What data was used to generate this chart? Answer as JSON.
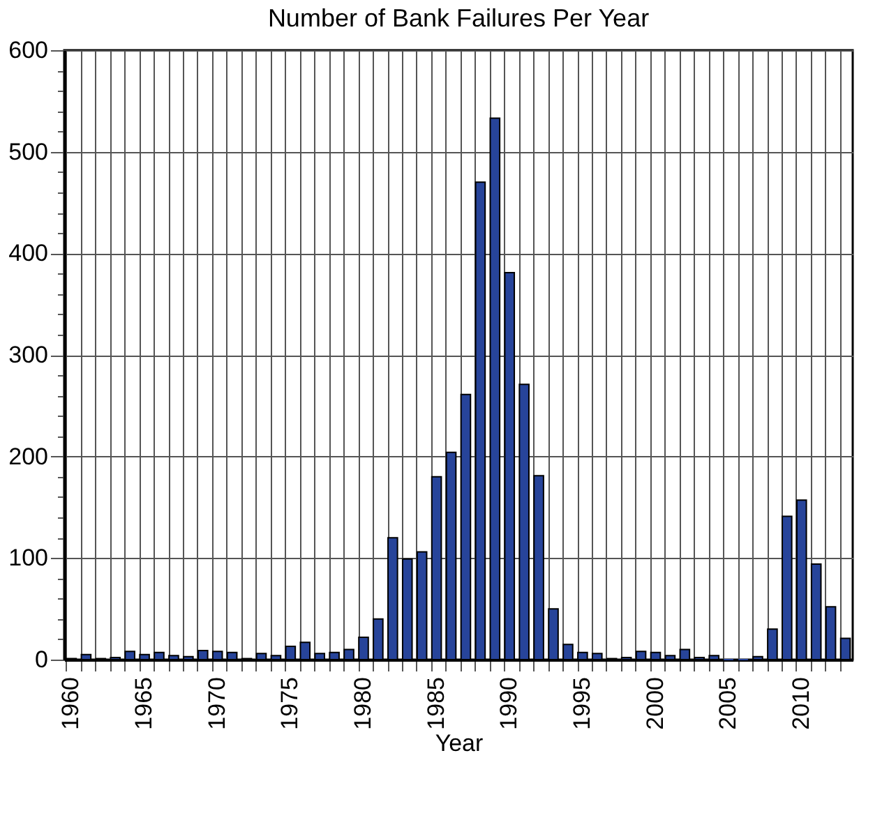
{
  "chart_data": {
    "type": "bar",
    "title": "Number of Bank Failures Per Year",
    "xlabel": "Year",
    "categories": [
      "1960",
      null,
      null,
      null,
      null,
      "1965",
      null,
      null,
      null,
      null,
      "1970",
      null,
      null,
      null,
      null,
      "1975",
      null,
      null,
      null,
      null,
      "1980",
      null,
      null,
      null,
      null,
      "1985",
      null,
      null,
      null,
      null,
      "1990",
      null,
      null,
      null,
      null,
      "1995",
      null,
      null,
      null,
      null,
      "2000",
      null,
      null,
      null,
      null,
      "2005",
      null,
      null,
      null,
      null,
      "2010",
      null,
      null,
      null
    ],
    "values": [
      1,
      5,
      1,
      2,
      8,
      5,
      7,
      4,
      3,
      9,
      8,
      7,
      1,
      6,
      4,
      13,
      17,
      6,
      7,
      10,
      22,
      40,
      120,
      99,
      106,
      180,
      204,
      261,
      470,
      533,
      381,
      271,
      181,
      50,
      15,
      7,
      6,
      1,
      2,
      8,
      7,
      4,
      10,
      2,
      4,
      0,
      0,
      3,
      30,
      141,
      157,
      94,
      52,
      21
    ],
    "color": "#27449a",
    "ylim": [
      0,
      600
    ],
    "yticks": [
      0,
      {
        "value": 20,
        "label": null
      },
      {
        "value": 40,
        "label": null
      },
      {
        "value": 60,
        "label": null
      },
      {
        "value": 80,
        "label": null
      },
      100,
      {
        "value": 120,
        "label": null
      },
      {
        "value": 140,
        "label": null
      },
      {
        "value": 160,
        "label": null
      },
      {
        "value": 180,
        "label": null
      },
      200,
      {
        "value": 220,
        "label": null
      },
      {
        "value": 240,
        "label": null
      },
      {
        "value": 260,
        "label": null
      },
      {
        "value": 280,
        "label": null
      },
      300,
      {
        "value": 320,
        "label": null
      },
      {
        "value": 340,
        "label": null
      },
      {
        "value": 360,
        "label": null
      },
      {
        "value": 380,
        "label": null
      },
      400,
      {
        "value": 420,
        "label": null
      },
      {
        "value": 440,
        "label": null
      },
      {
        "value": 460,
        "label": null
      },
      {
        "value": 480,
        "label": null
      },
      500,
      {
        "value": 520,
        "label": null
      },
      {
        "value": 540,
        "label": null
      },
      {
        "value": 560,
        "label": null
      },
      {
        "value": 580,
        "label": null
      },
      600
    ],
    "grid": true
  }
}
